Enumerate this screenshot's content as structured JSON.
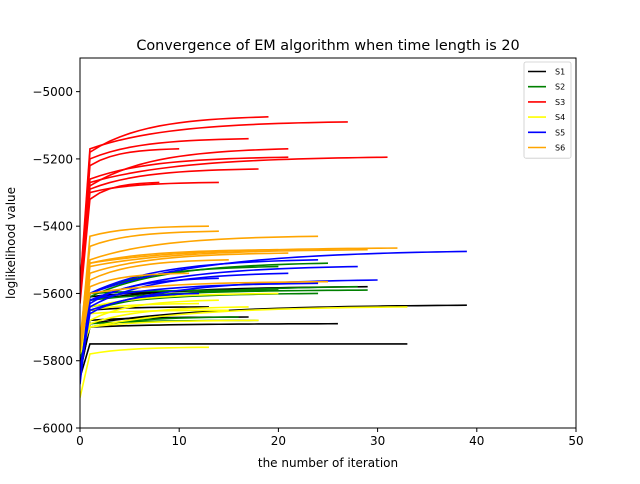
{
  "chart_data": {
    "type": "line",
    "title": "Convergence of EM algorithm when time length is 20",
    "xlabel": "the number of iteration",
    "ylabel": "loglikelihood value",
    "xlim": [
      0,
      50
    ],
    "ylim": [
      -6000,
      -4900
    ],
    "xticks": [
      0,
      10,
      20,
      30,
      40,
      50
    ],
    "yticks": [
      -6000,
      -5800,
      -5600,
      -5400,
      -5200,
      -5000
    ],
    "xtick_labels": [
      "0",
      "10",
      "20",
      "30",
      "40",
      "50"
    ],
    "ytick_labels": [
      "−6000",
      "−5800",
      "−5600",
      "−5400",
      "−5200",
      "−5000"
    ],
    "grid": false,
    "legend_position": "top-right",
    "series": [
      {
        "name": "S1",
        "color": "#000000",
        "runs": [
          {
            "start": -5850,
            "plateau": -5750,
            "end": -5750,
            "length": 33
          },
          {
            "start": -5840,
            "plateau": -5690,
            "end": -5635,
            "length": 39
          },
          {
            "start": -5830,
            "plateau": -5700,
            "end": -5690,
            "length": 26
          },
          {
            "start": -5820,
            "plateau": -5620,
            "end": -5580,
            "length": 29
          },
          {
            "start": -5800,
            "plateau": -5610,
            "end": -5590,
            "length": 20
          },
          {
            "start": -5820,
            "plateau": -5650,
            "end": -5640,
            "length": 13
          },
          {
            "start": -5800,
            "plateau": -5680,
            "end": -5670,
            "length": 17
          }
        ]
      },
      {
        "name": "S2",
        "color": "#008000",
        "runs": [
          {
            "start": -5790,
            "plateau": -5600,
            "end": -5520,
            "length": 20
          },
          {
            "start": -5780,
            "plateau": -5620,
            "end": -5590,
            "length": 29
          },
          {
            "start": -5770,
            "plateau": -5610,
            "end": -5510,
            "length": 25
          },
          {
            "start": -5780,
            "plateau": -5640,
            "end": -5600,
            "length": 24
          },
          {
            "start": -5760,
            "plateau": -5700,
            "end": -5670,
            "length": 16
          },
          {
            "start": -5790,
            "plateau": -5690,
            "end": -5680,
            "length": 18
          },
          {
            "start": -5770,
            "plateau": -5650,
            "end": -5580,
            "length": 28
          },
          {
            "start": -5780,
            "plateau": -5600,
            "end": -5590,
            "length": 20
          }
        ]
      },
      {
        "name": "S3",
        "color": "#ff0000",
        "runs": [
          {
            "start": -5600,
            "plateau": -5180,
            "end": -5075,
            "length": 19
          },
          {
            "start": -5580,
            "plateau": -5170,
            "end": -5090,
            "length": 27
          },
          {
            "start": -5600,
            "plateau": -5270,
            "end": -5195,
            "length": 31
          },
          {
            "start": -5620,
            "plateau": -5280,
            "end": -5170,
            "length": 21
          },
          {
            "start": -5590,
            "plateau": -5260,
            "end": -5195,
            "length": 21
          },
          {
            "start": -5610,
            "plateau": -5290,
            "end": -5230,
            "length": 18
          },
          {
            "start": -5600,
            "plateau": -5300,
            "end": -5270,
            "length": 14
          },
          {
            "start": -5580,
            "plateau": -5200,
            "end": -5140,
            "length": 17
          },
          {
            "start": -5620,
            "plateau": -5220,
            "end": -5170,
            "length": 10
          },
          {
            "start": -5630,
            "plateau": -5320,
            "end": -5270,
            "length": 8
          }
        ]
      },
      {
        "name": "S4",
        "color": "#ffff00",
        "runs": [
          {
            "start": -5910,
            "plateau": -5780,
            "end": -5760,
            "length": 13
          },
          {
            "start": -5780,
            "plateau": -5700,
            "end": -5640,
            "length": 33
          },
          {
            "start": -5760,
            "plateau": -5680,
            "end": -5620,
            "length": 14
          },
          {
            "start": -5770,
            "plateau": -5690,
            "end": -5640,
            "length": 17
          },
          {
            "start": -5780,
            "plateau": -5700,
            "end": -5680,
            "length": 18
          },
          {
            "start": -5760,
            "plateau": -5650,
            "end": -5630,
            "length": 12
          },
          {
            "start": -5750,
            "plateau": -5640,
            "end": -5600,
            "length": 20
          },
          {
            "start": -5770,
            "plateau": -5660,
            "end": -5650,
            "length": 15
          }
        ]
      },
      {
        "name": "S5",
        "color": "#0000ff",
        "runs": [
          {
            "start": -5870,
            "plateau": -5600,
            "end": -5475,
            "length": 39
          },
          {
            "start": -5850,
            "plateau": -5620,
            "end": -5520,
            "length": 28
          },
          {
            "start": -5830,
            "plateau": -5650,
            "end": -5560,
            "length": 30
          },
          {
            "start": -5840,
            "plateau": -5640,
            "end": -5540,
            "length": 21
          },
          {
            "start": -5860,
            "plateau": -5620,
            "end": -5570,
            "length": 24
          },
          {
            "start": -5850,
            "plateau": -5600,
            "end": -5500,
            "length": 24
          },
          {
            "start": -5830,
            "plateau": -5630,
            "end": -5555,
            "length": 14
          },
          {
            "start": -5840,
            "plateau": -5660,
            "end": -5600,
            "length": 12
          }
        ]
      },
      {
        "name": "S6",
        "color": "#ffa500",
        "runs": [
          {
            "start": -5760,
            "plateau": -5430,
            "end": -5400,
            "length": 13
          },
          {
            "start": -5740,
            "plateau": -5460,
            "end": -5415,
            "length": 14
          },
          {
            "start": -5750,
            "plateau": -5500,
            "end": -5430,
            "length": 24
          },
          {
            "start": -5760,
            "plateau": -5510,
            "end": -5465,
            "length": 32
          },
          {
            "start": -5770,
            "plateau": -5520,
            "end": -5470,
            "length": 29
          },
          {
            "start": -5740,
            "plateau": -5540,
            "end": -5480,
            "length": 21
          },
          {
            "start": -5760,
            "plateau": -5560,
            "end": -5500,
            "length": 15
          },
          {
            "start": -5750,
            "plateau": -5580,
            "end": -5540,
            "length": 11
          },
          {
            "start": -5770,
            "plateau": -5600,
            "end": -5565,
            "length": 25
          },
          {
            "start": -5760,
            "plateau": -5510,
            "end": -5470,
            "length": 20
          }
        ]
      }
    ]
  }
}
